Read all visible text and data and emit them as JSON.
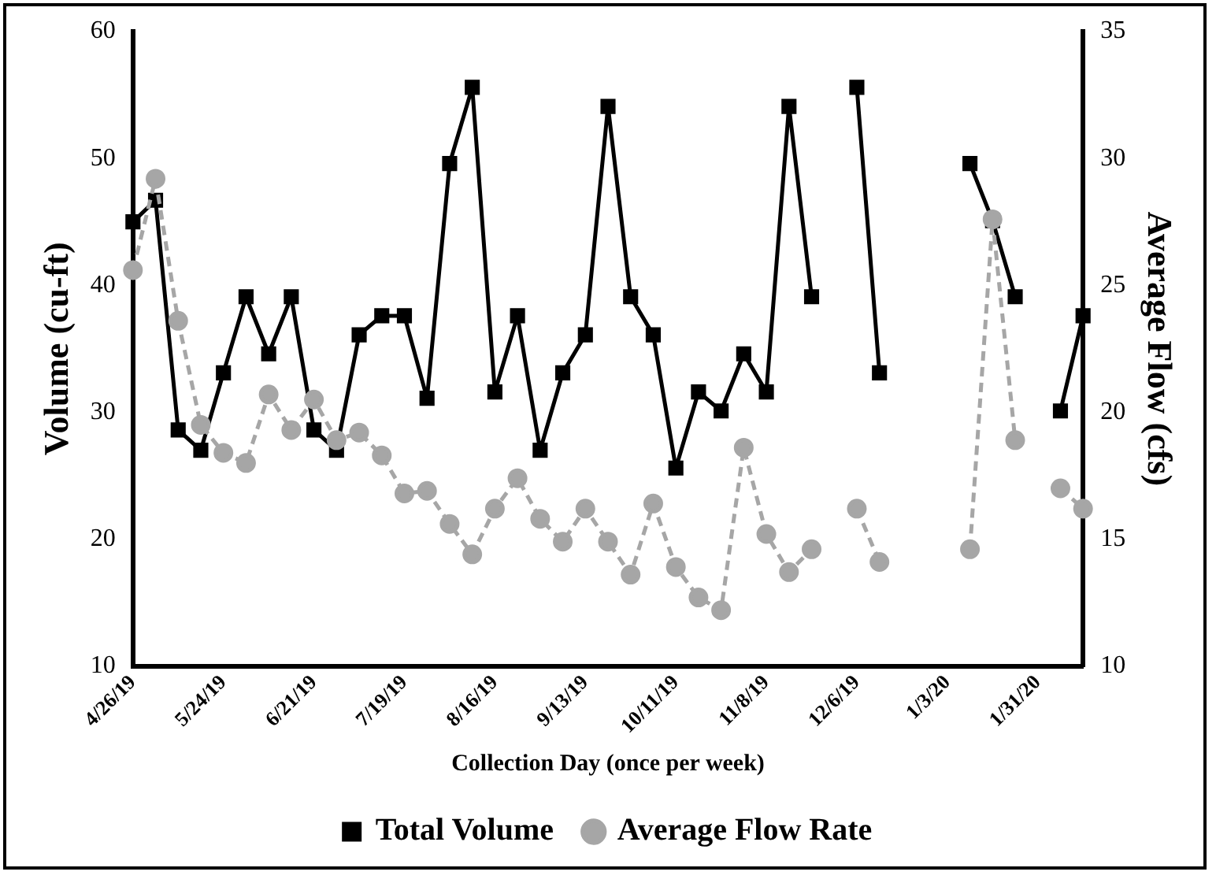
{
  "chart_data": {
    "type": "line",
    "xlabel": "Collection Day (once per week)",
    "ylabel": "Volume (cu-ft)",
    "y2label": "Average Flow (cfs)",
    "categories": [
      "4/26/19",
      null,
      null,
      null,
      "5/24/19",
      null,
      null,
      null,
      "6/21/19",
      null,
      null,
      null,
      "7/19/19",
      null,
      null,
      null,
      "8/16/19",
      null,
      null,
      null,
      "9/13/19",
      null,
      null,
      null,
      "10/11/19",
      null,
      null,
      null,
      "11/8/19",
      null,
      null,
      null,
      "12/6/19",
      null,
      null,
      null,
      "1/3/20",
      null,
      null,
      null,
      "1/31/20",
      null,
      null
    ],
    "series": [
      {
        "name": "Total Volume",
        "color": "#000000",
        "marker": "square",
        "line_style": "solid",
        "values": [
          45.0,
          46.7,
          28.6,
          27.0,
          33.1,
          39.1,
          34.6,
          39.1,
          28.6,
          27.0,
          36.1,
          37.6,
          37.6,
          31.1,
          49.6,
          55.6,
          31.6,
          37.6,
          27.0,
          33.1,
          36.1,
          54.1,
          39.1,
          36.1,
          25.6,
          31.6,
          30.1,
          34.6,
          31.6,
          54.1,
          39.1,
          null,
          55.6,
          33.1,
          null,
          null,
          null,
          49.6,
          45.1,
          39.1,
          null,
          30.1,
          37.6
        ]
      },
      {
        "name": "Average Flow Rate",
        "color": "#a6a6a6",
        "marker": "circle",
        "line_style": "dashed",
        "axis": "y2",
        "values": [
          25.6,
          29.2,
          23.6,
          19.5,
          18.4,
          18.0,
          20.7,
          19.3,
          20.5,
          18.9,
          19.2,
          18.3,
          16.8,
          16.9,
          15.6,
          14.4,
          16.2,
          17.4,
          15.8,
          14.9,
          16.2,
          14.9,
          13.6,
          16.4,
          13.9,
          12.7,
          12.2,
          18.6,
          15.2,
          13.7,
          14.6,
          null,
          16.2,
          14.1,
          null,
          null,
          null,
          14.6,
          27.6,
          18.9,
          null,
          17.0,
          16.2
        ]
      }
    ],
    "ylim": [
      10,
      60
    ],
    "yticks": [
      10,
      20,
      30,
      40,
      50,
      60
    ],
    "y2lim": [
      10,
      35
    ],
    "y2ticks": [
      10,
      15,
      20,
      25,
      30,
      35
    ],
    "grid": false,
    "legend": "bottom"
  }
}
